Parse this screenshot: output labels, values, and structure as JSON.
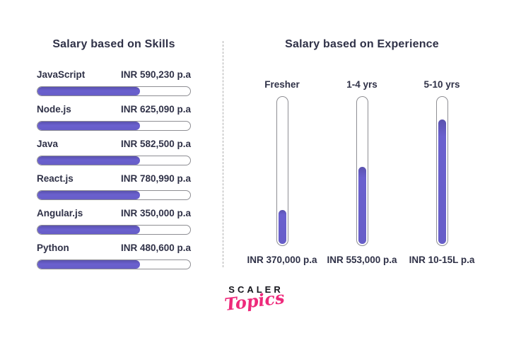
{
  "skills": {
    "title": "Salary based on Skills",
    "rows": [
      {
        "skill": "JavaScript",
        "salary": "INR 590,230 p.a",
        "fill": "67%"
      },
      {
        "skill": "Node.js",
        "salary": "INR 625,090 p.a",
        "fill": "67%"
      },
      {
        "skill": "Java",
        "salary": "INR 582,500 p.a",
        "fill": "67%"
      },
      {
        "skill": "React.js",
        "salary": "INR 780,990 p.a",
        "fill": "67%"
      },
      {
        "skill": "Angular.js",
        "salary": "INR 350,000 p.a",
        "fill": "67%"
      },
      {
        "skill": "Python",
        "salary": "INR 480,600 p.a",
        "fill": "67%"
      }
    ]
  },
  "experience": {
    "title": "Salary based on Experience",
    "columns": [
      {
        "label": "Fresher",
        "salary": "INR 370,000 p.a",
        "fill": "23%"
      },
      {
        "label": "1-4 yrs",
        "salary": "INR 553,000 p.a",
        "fill": "52%"
      },
      {
        "label": "5-10 yrs",
        "salary": "INR 10-15L p.a",
        "fill": "84%"
      }
    ]
  },
  "logo": {
    "brand": "SCALER",
    "sub": "Topics"
  },
  "colors": {
    "bar_fill": "#675EC8",
    "bar_outline": "#8E8E93",
    "text": "#2F3147",
    "logo_pink": "#EE2A7B",
    "divider": "#ADADAD",
    "background": "#FFFFFF"
  },
  "chart_data": [
    {
      "type": "bar",
      "orientation": "horizontal",
      "title": "Salary based on Skills",
      "categories": [
        "JavaScript",
        "Node.js",
        "Java",
        "React.js",
        "Angular.js",
        "Python"
      ],
      "values": [
        590230,
        625090,
        582500,
        780990,
        350000,
        480600
      ],
      "value_labels": [
        "INR 590,230 p.a",
        "INR 625,090 p.a",
        "INR 582,500 p.a",
        "INR 780,990 p.a",
        "INR 350,000 p.a",
        "INR 480,600 p.a"
      ],
      "unit": "INR per annum",
      "legend_position": "none",
      "grid": false,
      "note": "all bars rendered at equal ~67% decorative fill regardless of value"
    },
    {
      "type": "bar",
      "orientation": "vertical",
      "title": "Salary based on Experience",
      "categories": [
        "Fresher",
        "1-4 yrs",
        "5-10 yrs"
      ],
      "values": [
        370000,
        553000,
        null
      ],
      "value_labels": [
        "INR 370,000 p.a",
        "INR 553,000 p.a",
        "INR 10-15L p.a"
      ],
      "fill_percent": [
        23,
        52,
        84
      ],
      "unit": "INR per annum",
      "legend_position": "none",
      "grid": false
    }
  ]
}
